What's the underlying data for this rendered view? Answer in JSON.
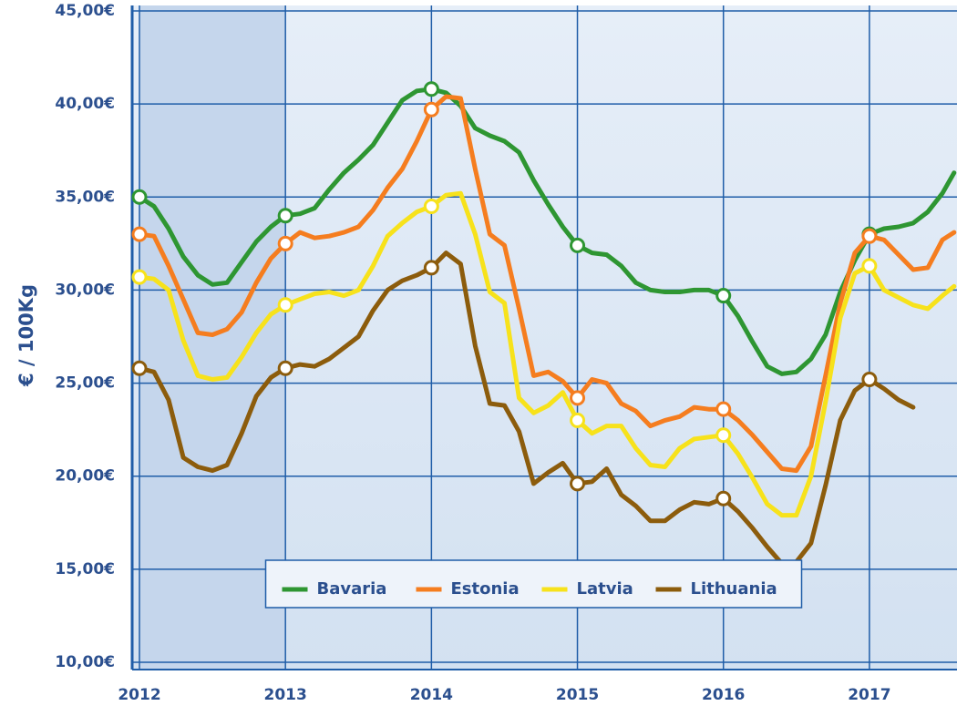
{
  "chart_data": {
    "type": "line",
    "y_label": "€ / 100Kg",
    "x": [
      2012,
      2012.1,
      2012.2,
      2012.3,
      2012.4,
      2012.5,
      2012.6,
      2012.7,
      2012.8,
      2012.9,
      2013,
      2013.1,
      2013.2,
      2013.3,
      2013.4,
      2013.5,
      2013.6,
      2013.7,
      2013.8,
      2013.9,
      2014,
      2014.1,
      2014.2,
      2014.3,
      2014.4,
      2014.5,
      2014.6,
      2014.7,
      2014.8,
      2014.9,
      2015,
      2015.1,
      2015.2,
      2015.3,
      2015.4,
      2015.5,
      2015.6,
      2015.7,
      2015.8,
      2015.9,
      2016,
      2016.1,
      2016.2,
      2016.3,
      2016.4,
      2016.5,
      2016.6,
      2016.7,
      2016.8,
      2016.9,
      2017,
      2017.1,
      2017.2,
      2017.3,
      2017.4,
      2017.5,
      2017.58
    ],
    "series": [
      {
        "name": "Bavaria",
        "color": "#2e9632",
        "values": [
          35.0,
          34.5,
          33.3,
          31.8,
          30.8,
          30.3,
          30.4,
          31.5,
          32.6,
          33.4,
          34.0,
          34.1,
          34.4,
          35.4,
          36.3,
          37.0,
          37.8,
          39.0,
          40.2,
          40.7,
          40.8,
          40.6,
          39.9,
          38.7,
          38.3,
          38.0,
          37.4,
          35.9,
          34.6,
          33.4,
          32.4,
          32.0,
          31.9,
          31.3,
          30.4,
          30.0,
          29.9,
          29.9,
          30.0,
          30.0,
          29.7,
          28.6,
          27.2,
          25.9,
          25.5,
          25.6,
          26.3,
          27.6,
          29.9,
          31.6,
          33.0,
          33.3,
          33.4,
          33.6,
          34.2,
          35.2,
          36.3
        ]
      },
      {
        "name": "Estonia",
        "color": "#f57d1f",
        "values": [
          33.0,
          32.9,
          31.3,
          29.5,
          27.7,
          27.6,
          27.9,
          28.8,
          30.4,
          31.7,
          32.5,
          33.1,
          32.8,
          32.9,
          33.1,
          33.4,
          34.3,
          35.5,
          36.5,
          38.0,
          39.7,
          40.4,
          40.3,
          36.5,
          33.0,
          32.4,
          29.0,
          25.4,
          25.6,
          25.1,
          24.2,
          25.2,
          25.0,
          23.9,
          23.5,
          22.7,
          23.0,
          23.2,
          23.7,
          23.6,
          23.6,
          23.0,
          22.2,
          21.3,
          20.4,
          20.3,
          21.6,
          25.4,
          29.3,
          32.0,
          32.9,
          32.7,
          31.9,
          31.1,
          31.2,
          32.7,
          33.1
        ]
      },
      {
        "name": "Latvia",
        "color": "#f7e21b",
        "values": [
          30.7,
          30.6,
          30.0,
          27.3,
          25.4,
          25.2,
          25.3,
          26.4,
          27.7,
          28.7,
          29.2,
          29.5,
          29.8,
          29.9,
          29.7,
          30.0,
          31.3,
          32.9,
          33.6,
          34.2,
          34.5,
          35.1,
          35.2,
          33.0,
          29.9,
          29.3,
          24.2,
          23.4,
          23.8,
          24.5,
          23.0,
          22.3,
          22.7,
          22.7,
          21.5,
          20.6,
          20.5,
          21.5,
          22.0,
          22.1,
          22.2,
          21.2,
          19.9,
          18.5,
          17.9,
          17.9,
          20.0,
          24.0,
          28.5,
          30.9,
          31.3,
          30.0,
          29.6,
          29.2,
          29.0,
          29.7,
          30.2
        ]
      },
      {
        "name": "Lithuania",
        "color": "#8c5c0c",
        "values": [
          25.8,
          25.6,
          24.1,
          21.0,
          20.5,
          20.3,
          20.6,
          22.3,
          24.3,
          25.3,
          25.8,
          26.0,
          25.9,
          26.3,
          26.9,
          27.5,
          28.9,
          30.0,
          30.5,
          30.8,
          31.2,
          32.0,
          31.4,
          27.0,
          23.9,
          23.8,
          22.4,
          19.6,
          20.2,
          20.7,
          19.6,
          19.7,
          20.4,
          19.0,
          18.4,
          17.6,
          17.6,
          18.2,
          18.6,
          18.5,
          18.8,
          18.1,
          17.2,
          16.2,
          15.3,
          15.4,
          16.4,
          19.5,
          23.0,
          24.6,
          25.2,
          24.7,
          24.1,
          23.7,
          null,
          null,
          null
        ]
      }
    ],
    "xlim": [
      2011.95,
      2017.6
    ],
    "xticks": [
      2012,
      2013,
      2014,
      2015,
      2016,
      2017
    ],
    "ylim": [
      10,
      45
    ],
    "yticks": [
      {
        "value": 10,
        "label": "10,00€"
      },
      {
        "value": 15,
        "label": "15,00€"
      },
      {
        "value": 20,
        "label": "20,00€"
      },
      {
        "value": 25,
        "label": "25,00€"
      },
      {
        "value": 30,
        "label": "30,00€"
      },
      {
        "value": 35,
        "label": "35,00€"
      },
      {
        "value": 40,
        "label": "40,00€"
      },
      {
        "value": 45,
        "label": "45,00€"
      }
    ],
    "grid": true,
    "legend": "lower center"
  }
}
